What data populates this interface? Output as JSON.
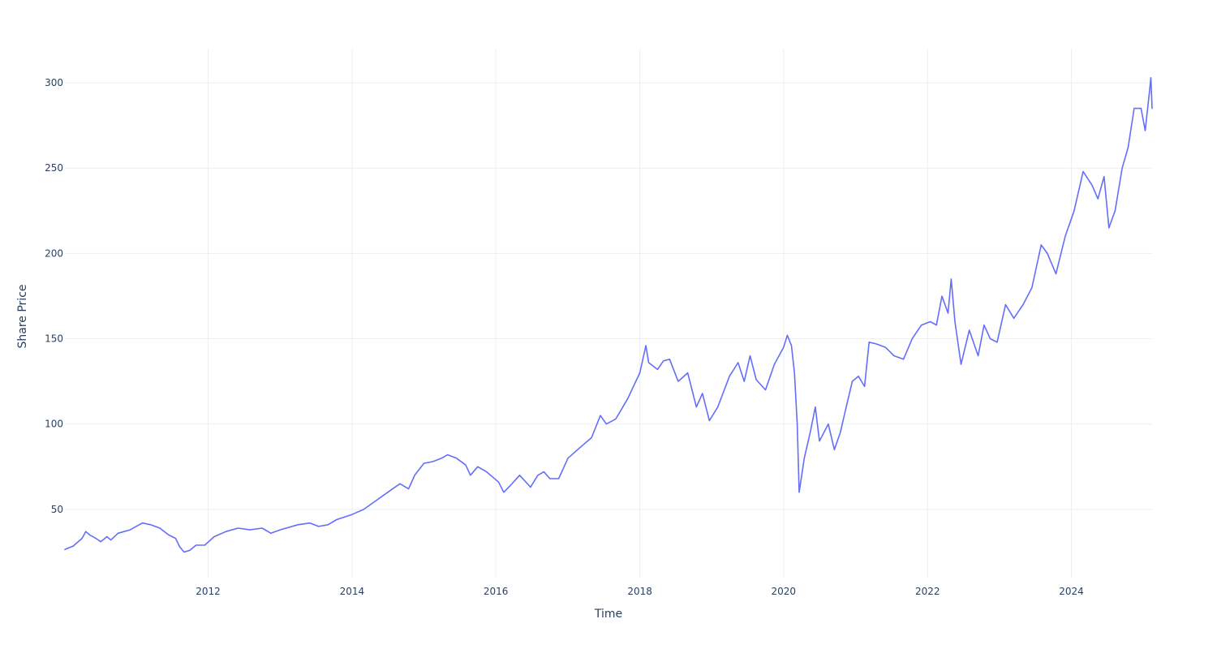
{
  "chart_data": {
    "type": "line",
    "title": "",
    "xlabel": "Time",
    "ylabel": "Share Price",
    "x_tick_labels": [
      "2012",
      "2014",
      "2016",
      "2018",
      "2020",
      "2022",
      "2024"
    ],
    "y_tick_labels": [
      "50",
      "100",
      "150",
      "200",
      "250",
      "300"
    ],
    "xlim": [
      "2010-01-04",
      "2025-02-14"
    ],
    "ylim": [
      10,
      320
    ],
    "grid": true,
    "legend": "none",
    "series": [
      {
        "color": "#636efa",
        "points": [
          [
            "2010-01-04",
            26.5
          ],
          [
            "2010-02-15",
            28.5
          ],
          [
            "2010-04-01",
            33
          ],
          [
            "2010-04-20",
            37
          ],
          [
            "2010-05-10",
            35
          ],
          [
            "2010-06-10",
            33
          ],
          [
            "2010-07-05",
            31
          ],
          [
            "2010-08-05",
            34
          ],
          [
            "2010-08-25",
            32
          ],
          [
            "2010-10-01",
            36
          ],
          [
            "2010-12-01",
            38
          ],
          [
            "2011-02-01",
            42
          ],
          [
            "2011-03-15",
            41
          ],
          [
            "2011-05-01",
            39
          ],
          [
            "2011-06-15",
            35
          ],
          [
            "2011-07-20",
            33
          ],
          [
            "2011-08-10",
            28
          ],
          [
            "2011-09-01",
            25
          ],
          [
            "2011-10-01",
            26
          ],
          [
            "2011-11-01",
            29
          ],
          [
            "2011-12-15",
            29
          ],
          [
            "2012-02-01",
            34
          ],
          [
            "2012-04-01",
            37
          ],
          [
            "2012-06-01",
            39
          ],
          [
            "2012-08-01",
            38
          ],
          [
            "2012-10-01",
            39
          ],
          [
            "2012-11-15",
            36
          ],
          [
            "2013-01-01",
            38
          ],
          [
            "2013-04-01",
            41
          ],
          [
            "2013-06-01",
            42
          ],
          [
            "2013-07-15",
            40
          ],
          [
            "2013-09-01",
            41
          ],
          [
            "2013-10-15",
            44
          ],
          [
            "2014-01-01",
            47
          ],
          [
            "2014-03-01",
            50
          ],
          [
            "2014-05-01",
            55
          ],
          [
            "2014-07-01",
            60
          ],
          [
            "2014-09-01",
            65
          ],
          [
            "2014-10-15",
            62
          ],
          [
            "2014-11-15",
            70
          ],
          [
            "2015-01-01",
            77
          ],
          [
            "2015-02-15",
            78
          ],
          [
            "2015-04-01",
            80
          ],
          [
            "2015-05-01",
            82
          ],
          [
            "2015-06-15",
            80
          ],
          [
            "2015-08-01",
            76
          ],
          [
            "2015-08-25",
            70
          ],
          [
            "2015-10-01",
            75
          ],
          [
            "2015-11-15",
            72
          ],
          [
            "2016-01-15",
            66
          ],
          [
            "2016-02-10",
            60
          ],
          [
            "2016-03-15",
            64
          ],
          [
            "2016-05-01",
            70
          ],
          [
            "2016-06-25",
            63
          ],
          [
            "2016-08-01",
            70
          ],
          [
            "2016-09-01",
            72
          ],
          [
            "2016-10-01",
            68
          ],
          [
            "2016-11-15",
            68
          ],
          [
            "2017-01-01",
            80
          ],
          [
            "2017-03-01",
            86
          ],
          [
            "2017-05-01",
            92
          ],
          [
            "2017-06-15",
            105
          ],
          [
            "2017-07-15",
            100
          ],
          [
            "2017-09-01",
            103
          ],
          [
            "2017-11-01",
            115
          ],
          [
            "2018-01-01",
            130
          ],
          [
            "2018-02-01",
            146
          ],
          [
            "2018-02-15",
            136
          ],
          [
            "2018-04-01",
            132
          ],
          [
            "2018-05-01",
            137
          ],
          [
            "2018-06-01",
            138
          ],
          [
            "2018-07-15",
            125
          ],
          [
            "2018-09-01",
            130
          ],
          [
            "2018-10-15",
            110
          ],
          [
            "2018-11-15",
            118
          ],
          [
            "2018-12-20",
            102
          ],
          [
            "2019-02-01",
            110
          ],
          [
            "2019-04-01",
            128
          ],
          [
            "2019-05-15",
            136
          ],
          [
            "2019-06-15",
            125
          ],
          [
            "2019-07-15",
            140
          ],
          [
            "2019-08-15",
            126
          ],
          [
            "2019-10-01",
            120
          ],
          [
            "2019-11-15",
            135
          ],
          [
            "2020-01-01",
            145
          ],
          [
            "2020-01-20",
            152
          ],
          [
            "2020-02-10",
            146
          ],
          [
            "2020-02-25",
            130
          ],
          [
            "2020-03-10",
            100
          ],
          [
            "2020-03-20",
            60
          ],
          [
            "2020-04-15",
            80
          ],
          [
            "2020-05-15",
            95
          ],
          [
            "2020-06-10",
            110
          ],
          [
            "2020-07-01",
            90
          ],
          [
            "2020-08-15",
            100
          ],
          [
            "2020-09-15",
            85
          ],
          [
            "2020-10-15",
            95
          ],
          [
            "2020-11-10",
            108
          ],
          [
            "2020-12-15",
            125
          ],
          [
            "2021-01-15",
            128
          ],
          [
            "2021-02-15",
            122
          ],
          [
            "2021-03-10",
            148
          ],
          [
            "2021-04-15",
            147
          ],
          [
            "2021-06-01",
            145
          ],
          [
            "2021-07-15",
            140
          ],
          [
            "2021-09-01",
            138
          ],
          [
            "2021-10-15",
            150
          ],
          [
            "2021-12-01",
            158
          ],
          [
            "2022-01-15",
            160
          ],
          [
            "2022-02-15",
            158
          ],
          [
            "2022-03-15",
            175
          ],
          [
            "2022-04-15",
            165
          ],
          [
            "2022-05-01",
            185
          ],
          [
            "2022-05-20",
            160
          ],
          [
            "2022-06-20",
            135
          ],
          [
            "2022-08-01",
            155
          ],
          [
            "2022-09-15",
            140
          ],
          [
            "2022-10-15",
            158
          ],
          [
            "2022-11-15",
            150
          ],
          [
            "2022-12-20",
            148
          ],
          [
            "2023-02-01",
            170
          ],
          [
            "2023-03-15",
            162
          ],
          [
            "2023-05-01",
            170
          ],
          [
            "2023-06-15",
            180
          ],
          [
            "2023-08-01",
            205
          ],
          [
            "2023-09-01",
            200
          ],
          [
            "2023-10-15",
            188
          ],
          [
            "2023-12-01",
            210
          ],
          [
            "2024-01-15",
            225
          ],
          [
            "2024-03-01",
            248
          ],
          [
            "2024-04-15",
            240
          ],
          [
            "2024-05-15",
            232
          ],
          [
            "2024-06-15",
            245
          ],
          [
            "2024-07-10",
            215
          ],
          [
            "2024-08-10",
            225
          ],
          [
            "2024-09-15",
            250
          ],
          [
            "2024-10-15",
            262
          ],
          [
            "2024-11-15",
            285
          ],
          [
            "2024-12-20",
            285
          ],
          [
            "2025-01-10",
            272
          ],
          [
            "2025-02-01",
            295
          ],
          [
            "2025-02-08",
            303
          ],
          [
            "2025-02-14",
            285
          ]
        ]
      }
    ]
  }
}
